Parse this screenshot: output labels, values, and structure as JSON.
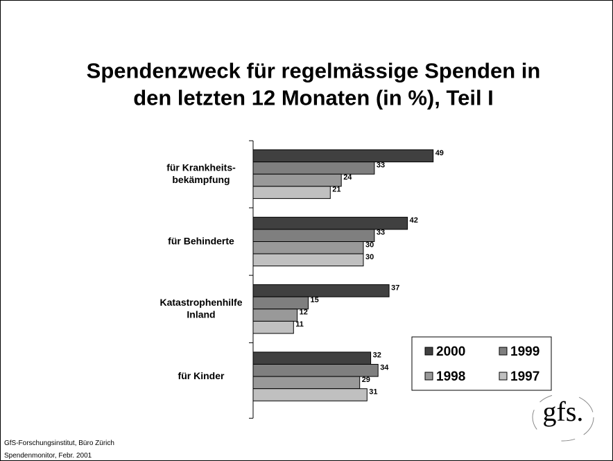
{
  "chart_data": {
    "type": "bar",
    "orientation": "horizontal",
    "title": "Spendenzweck für regelmässige Spenden in\nden letzten 12 Monaten (in %), Teil I",
    "categories": [
      "für Krankheits-\nbekämpfung",
      "für Behinderte",
      "Katastrophenhilfe\nInland",
      "für Kinder"
    ],
    "series": [
      {
        "name": "2000",
        "color": "#404040",
        "values": [
          49,
          42,
          37,
          32
        ]
      },
      {
        "name": "1999",
        "color": "#7f7f7f",
        "values": [
          33,
          33,
          15,
          34
        ]
      },
      {
        "name": "1998",
        "color": "#999999",
        "values": [
          24,
          30,
          12,
          29
        ]
      },
      {
        "name": "1997",
        "color": "#c0c0c0",
        "values": [
          21,
          30,
          11,
          31
        ]
      }
    ],
    "xlim": [
      0,
      80
    ],
    "legend": "lower right"
  },
  "footer": [
    "GfS-Forschungsinstitut, Büro Zürich",
    "Spendenmonitor, Febr. 2001"
  ],
  "logo": "gfs."
}
